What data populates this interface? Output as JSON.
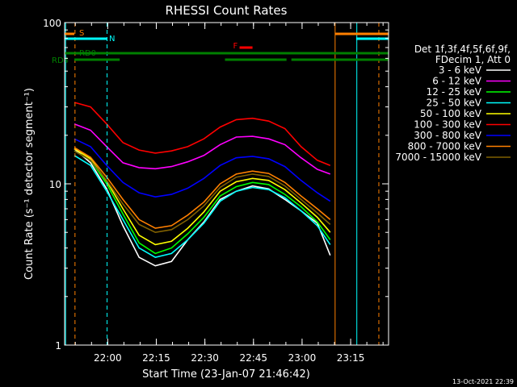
{
  "chart_data": {
    "type": "line",
    "title": "RHESSI Count Rates",
    "xlabel": "Start Time (23-Jan-07 21:46:42)",
    "ylabel": "Count Rate (s⁻¹ detector segment⁻¹)",
    "x_range_minutes": [
      0,
      100
    ],
    "x_ticks": [
      {
        "label": "22:00",
        "minute": 13.3
      },
      {
        "label": "22:15",
        "minute": 28.3
      },
      {
        "label": "22:30",
        "minute": 43.3
      },
      {
        "label": "22:45",
        "minute": 58.3
      },
      {
        "label": "23:00",
        "minute": 73.3
      },
      {
        "label": "23:15",
        "minute": 88.3
      }
    ],
    "y_scale": "log",
    "ylim": [
      1,
      100
    ],
    "y_ticks": [
      {
        "label": "1",
        "value": 1
      },
      {
        "label": "10",
        "value": 10
      },
      {
        "label": "100",
        "value": 100
      }
    ],
    "legend_header": [
      "Det 1f,3f,4f,5f,6f,9f,",
      "FDecim 1, Att 0"
    ],
    "legend_position": "right",
    "series": [
      {
        "name": "3 - 6 keV",
        "color": "#ffffff",
        "values": [
          16.5,
          13.5,
          9.3,
          5.5,
          3.5,
          3.1,
          3.3,
          4.5,
          5.8,
          8.0,
          9.0,
          9.7,
          9.3,
          8.0,
          6.8,
          5.7,
          3.6
        ]
      },
      {
        "name": "6 - 12 keV",
        "color": "#ff00ff",
        "values": [
          23.5,
          21.5,
          17.0,
          13.5,
          12.6,
          12.4,
          12.8,
          13.7,
          15.0,
          17.5,
          19.5,
          19.7,
          19.0,
          17.5,
          14.5,
          12.3,
          11.5
        ]
      },
      {
        "name": "12 - 25 keV",
        "color": "#00ff00",
        "values": [
          16.0,
          14.0,
          10.0,
          6.5,
          4.3,
          3.7,
          4.0,
          4.9,
          6.2,
          8.4,
          9.6,
          10.2,
          9.9,
          8.6,
          7.2,
          5.8,
          4.5
        ]
      },
      {
        "name": "25 - 50 keV",
        "color": "#00ffff",
        "values": [
          15.0,
          13.0,
          9.0,
          6.0,
          4.0,
          3.5,
          3.7,
          4.5,
          5.7,
          7.8,
          9.0,
          9.5,
          9.2,
          8.2,
          6.8,
          5.5,
          4.2
        ]
      },
      {
        "name": "50 - 100 keV",
        "color": "#ffff00",
        "values": [
          16.5,
          14.3,
          10.4,
          7.0,
          4.8,
          4.2,
          4.4,
          5.3,
          6.7,
          9.0,
          10.3,
          10.8,
          10.5,
          9.2,
          7.6,
          6.2,
          5.0
        ]
      },
      {
        "name": "100 - 300 keV",
        "color": "#ff0000",
        "values": [
          32.0,
          30.0,
          23.5,
          18.0,
          16.2,
          15.5,
          16.0,
          17.0,
          19.0,
          22.5,
          25.0,
          25.5,
          24.5,
          22.0,
          17.0,
          14.0,
          13.0
        ]
      },
      {
        "name": "300 - 800 keV",
        "color": "#0000ff",
        "values": [
          19.0,
          17.0,
          13.0,
          10.2,
          8.8,
          8.3,
          8.6,
          9.4,
          10.8,
          13.0,
          14.5,
          14.8,
          14.3,
          12.8,
          10.5,
          8.8,
          7.8
        ]
      },
      {
        "name": "800 - 7000 keV",
        "color": "#ff8000",
        "values": [
          16.8,
          14.6,
          11.0,
          8.0,
          6.0,
          5.3,
          5.5,
          6.4,
          7.7,
          10.0,
          11.5,
          12.0,
          11.6,
          10.2,
          8.4,
          7.0,
          6.0
        ]
      },
      {
        "name": "7000 - 15000 keV",
        "color": "#806000",
        "values": [
          16.0,
          14.0,
          10.5,
          7.5,
          5.6,
          5.0,
          5.2,
          6.0,
          7.3,
          9.5,
          11.0,
          11.5,
          11.1,
          9.7,
          8.0,
          6.6,
          5.6
        ]
      }
    ],
    "series_x_minutes": [
      3,
      8,
      13,
      18,
      23,
      28,
      33,
      38,
      43,
      48,
      53,
      58,
      63,
      68,
      73,
      78,
      82
    ],
    "flags": [
      {
        "label": "S",
        "color": "#ff8000",
        "segments": [
          [
            0,
            3
          ],
          [
            83.5,
            100
          ]
        ]
      },
      {
        "label": "N",
        "color": "#00ffff",
        "segments": [
          [
            0,
            13
          ],
          [
            90,
            100
          ]
        ]
      },
      {
        "label": "RD0",
        "color": "#008000",
        "segments": [
          [
            0,
            100
          ]
        ]
      },
      {
        "label": "RD4",
        "color": "#008000",
        "segments": [
          [
            3,
            17
          ],
          [
            49.5,
            68.5
          ],
          [
            70,
            100
          ]
        ]
      },
      {
        "label": "F",
        "color": "#ff0000",
        "segments": [
          [
            54,
            58
          ]
        ]
      }
    ],
    "vertical_lines": [
      {
        "minute": 0.3,
        "color": "#00ffff",
        "style": "solid"
      },
      {
        "minute": 3.2,
        "color": "#ff8000",
        "style": "dashed"
      },
      {
        "minute": 13.1,
        "color": "#00ffff",
        "style": "dashed"
      },
      {
        "minute": 83.5,
        "color": "#ff8000",
        "style": "solid"
      },
      {
        "minute": 90.2,
        "color": "#00ffff",
        "style": "solid"
      },
      {
        "minute": 97.0,
        "color": "#ff8000",
        "style": "dashed"
      }
    ]
  },
  "footer_timestamp": "13-Oct-2021 22:39"
}
